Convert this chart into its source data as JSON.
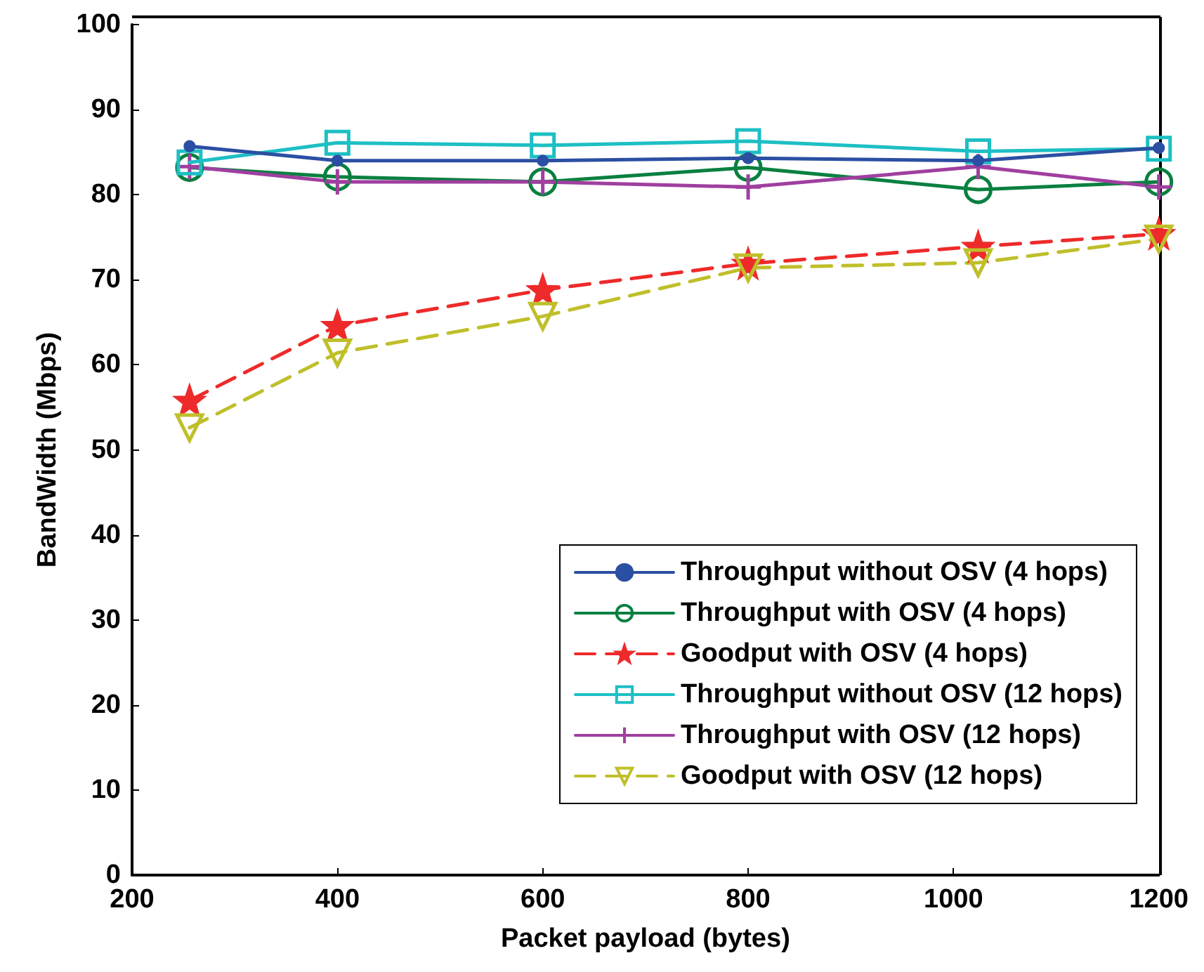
{
  "chart_data": {
    "type": "line",
    "xlabel": "Packet payload (bytes)",
    "ylabel": "BandWidth (Mbps)",
    "x": [
      256,
      400,
      600,
      800,
      1024,
      1200
    ],
    "xlim": [
      200,
      1200
    ],
    "xticks": [
      200,
      400,
      600,
      800,
      1000,
      1200
    ],
    "ylim": [
      0,
      100
    ],
    "yticks": [
      0,
      10,
      20,
      30,
      40,
      50,
      60,
      70,
      80,
      90,
      100
    ],
    "grid": false,
    "legend": "bottom right",
    "series": [
      {
        "name": "Throughput without OSV (4 hops)",
        "color": "#2b4fa2",
        "marker": "point",
        "line_style": "solid",
        "values": [
          85.7,
          84.0,
          84.0,
          84.3,
          84.0,
          85.5
        ]
      },
      {
        "name": "Throughput with OSV (4 hops)",
        "color": "#0a8040",
        "marker": "circle",
        "line_style": "solid",
        "values": [
          83.2,
          82.1,
          81.5,
          83.2,
          80.6,
          81.5
        ]
      },
      {
        "name": "Goodput with OSV (4 hops)",
        "color": "#ee2a2a",
        "marker": "star",
        "line_style": "dashed",
        "values": [
          55.8,
          64.6,
          68.8,
          71.9,
          73.9,
          75.4
        ]
      },
      {
        "name": "Throughput without OSV (12 hops)",
        "color": "#1dbfc4",
        "marker": "square",
        "line_style": "solid",
        "values": [
          83.8,
          86.1,
          85.8,
          86.3,
          85.1,
          85.4
        ]
      },
      {
        "name": "Throughput with OSV (12 hops)",
        "color": "#a03fa0",
        "marker": "cross",
        "line_style": "solid",
        "values": [
          83.3,
          81.5,
          81.5,
          80.9,
          83.3,
          80.9
        ]
      },
      {
        "name": "Goodput with OSV (12 hops)",
        "color": "#bfbf2a",
        "marker": "triangle",
        "line_style": "dashed",
        "values": [
          52.6,
          61.4,
          65.7,
          71.4,
          72.0,
          74.8
        ]
      }
    ]
  }
}
